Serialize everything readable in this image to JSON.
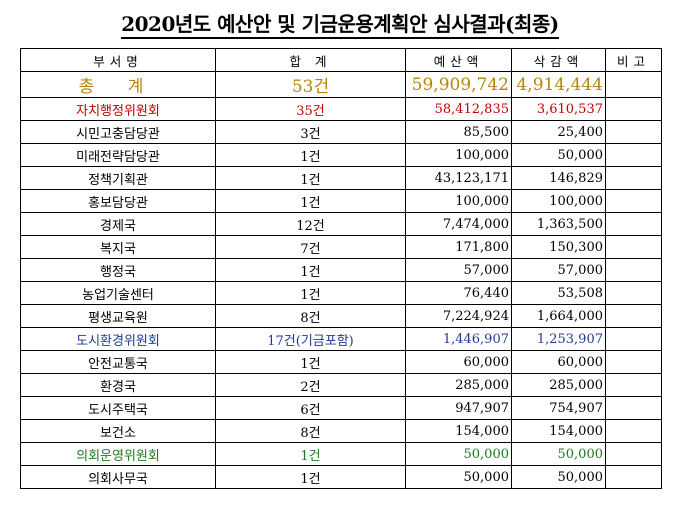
{
  "title": "2020년도 예산안 및 기금운용계획안 심사결과(최종)",
  "headers": [
    "부서명",
    "합 계",
    "예산액",
    "삭감액",
    "비고"
  ],
  "colors": {
    "total": "#b8860b",
    "red": "#c00000",
    "blue": "#1f3a93",
    "green": "#1e7a1e",
    "black": "#000000"
  },
  "rows": [
    {
      "dept": "총 계",
      "count": "53건",
      "budget": "59,909,742",
      "cut": "4,914,444",
      "note": "",
      "style": "total"
    },
    {
      "dept": "자치행정위원회",
      "count": "35건",
      "budget": "58,412,835",
      "cut": "3,610,537",
      "note": "",
      "style": "red"
    },
    {
      "dept": "시민고충담당관",
      "count": "3건",
      "budget": "85,500",
      "cut": "25,400",
      "note": "",
      "style": "black"
    },
    {
      "dept": "미래전략담당관",
      "count": "1건",
      "budget": "100,000",
      "cut": "50,000",
      "note": "",
      "style": "black"
    },
    {
      "dept": "정책기획관",
      "count": "1건",
      "budget": "43,123,171",
      "cut": "146,829",
      "note": "",
      "style": "black"
    },
    {
      "dept": "홍보담당관",
      "count": "1건",
      "budget": "100,000",
      "cut": "100,000",
      "note": "",
      "style": "black"
    },
    {
      "dept": "경제국",
      "count": "12건",
      "budget": "7,474,000",
      "cut": "1,363,500",
      "note": "",
      "style": "black"
    },
    {
      "dept": "복지국",
      "count": "7건",
      "budget": "171,800",
      "cut": "150,300",
      "note": "",
      "style": "black"
    },
    {
      "dept": "행정국",
      "count": "1건",
      "budget": "57,000",
      "cut": "57,000",
      "note": "",
      "style": "black"
    },
    {
      "dept": "농업기술센터",
      "count": "1건",
      "budget": "76,440",
      "cut": "53,508",
      "note": "",
      "style": "black"
    },
    {
      "dept": "평생교육원",
      "count": "8건",
      "budget": "7,224,924",
      "cut": "1,664,000",
      "note": "",
      "style": "black"
    },
    {
      "dept": "도시환경위원회",
      "count": "17건(기금포함)",
      "budget": "1,446,907",
      "cut": "1,253,907",
      "note": "",
      "style": "blue"
    },
    {
      "dept": "안전교통국",
      "count": "1건",
      "budget": "60,000",
      "cut": "60,000",
      "note": "",
      "style": "black"
    },
    {
      "dept": "환경국",
      "count": "2건",
      "budget": "285,000",
      "cut": "285,000",
      "note": "",
      "style": "black"
    },
    {
      "dept": "도시주택국",
      "count": "6건",
      "budget": "947,907",
      "cut": "754,907",
      "note": "",
      "style": "black"
    },
    {
      "dept": "보건소",
      "count": "8건",
      "budget": "154,000",
      "cut": "154,000",
      "note": "",
      "style": "black"
    },
    {
      "dept": "의회운영위원회",
      "count": "1건",
      "budget": "50,000",
      "cut": "50,000",
      "note": "",
      "style": "green"
    },
    {
      "dept": "의회사무국",
      "count": "1건",
      "budget": "50,000",
      "cut": "50,000",
      "note": "",
      "style": "black"
    }
  ]
}
